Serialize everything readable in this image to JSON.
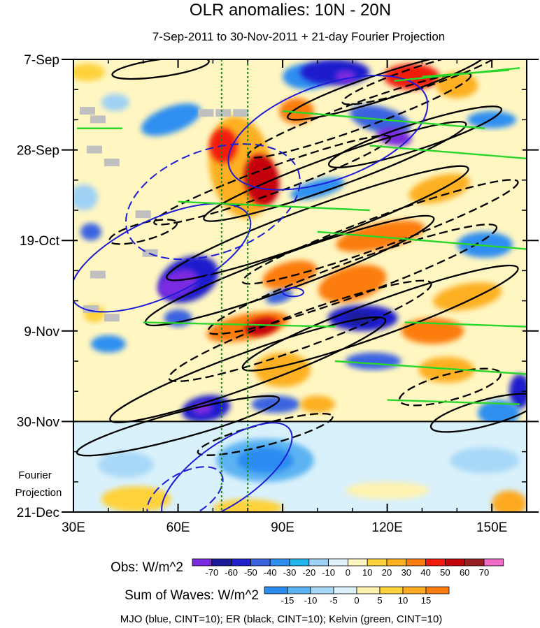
{
  "chart_data": {
    "type": "heatmap",
    "title": "OLR anomalies: 10N - 20N",
    "subtitle": "7-Sep-2011 to 30-Nov-2011 + 21-day Fourier Projection",
    "x_axis": {
      "range": [
        30,
        160
      ],
      "tick_values": [
        30,
        60,
        90,
        120,
        150
      ],
      "tick_labels": [
        "30E",
        "60E",
        "90E",
        "120E",
        "150E"
      ]
    },
    "y_axis": {
      "range_days": [
        0,
        105
      ],
      "tick_values": [
        0,
        21,
        42,
        63,
        84,
        105
      ],
      "tick_labels": [
        "7-Sep",
        "28-Sep",
        "19-Oct",
        "9-Nov",
        "30-Nov",
        "21-Dec"
      ]
    },
    "projection_label_line1": "Fourier",
    "projection_label_line2": "Projection",
    "projection_start_day": 84,
    "reference_lon_lines": [
      72.5,
      80
    ],
    "obs_colorbar": {
      "label": "Obs: W/m^2",
      "levels": [
        "-70",
        "-60",
        "-50",
        "-40",
        "-30",
        "-20",
        "-10",
        "0",
        "10",
        "20",
        "30",
        "40",
        "50",
        "60",
        "70"
      ],
      "colors": [
        "#7a2be0",
        "#1a1a99",
        "#1f1fcc",
        "#3b63e0",
        "#2f8ff0",
        "#23b6ee",
        "#9fd1f5",
        "#dff2fb",
        "#fff6c2",
        "#fed23a",
        "#fdb021",
        "#fc7d10",
        "#f21a0d",
        "#c4040b",
        "#992020",
        "#f06ac8"
      ]
    },
    "waves_colorbar": {
      "label": "Sum of Waves: W/m^2",
      "levels": [
        "-15",
        "-10",
        "-5",
        "0",
        "5",
        "10",
        "15"
      ],
      "colors": [
        "#2b8cf0",
        "#5cb3f3",
        "#a8d8f7",
        "#d9f1fb",
        "#fff2b0",
        "#fed23a",
        "#fdaa21",
        "#fc7d10"
      ]
    },
    "footnote": "MJO (blue, CINT=10); ER (black, CINT=10); Kelvin (green, CINT=10)",
    "contour_colors": {
      "mjo": "#1c1cd6",
      "er": "#000000",
      "kelvin": "#2bd62b",
      "ref_line": "#1a8a1a"
    },
    "blobs": [
      {
        "lon": 34,
        "day": 3,
        "rlon": 5,
        "rday": 2,
        "level": 9,
        "tilt": 0
      },
      {
        "lon": 42,
        "day": 10,
        "rlon": 4,
        "rday": 2,
        "level": 6,
        "tilt": 0
      },
      {
        "lon": 33,
        "day": 32,
        "rlon": 4,
        "rday": 3,
        "level": 6,
        "tilt": 0
      },
      {
        "lon": 35,
        "day": 40,
        "rlon": 3,
        "rday": 2,
        "level": 3,
        "tilt": 0
      },
      {
        "lon": 58,
        "day": 14,
        "rlon": 9,
        "rday": 3,
        "level": 4,
        "tilt": 20
      },
      {
        "lon": 78,
        "day": 25,
        "rlon": 9,
        "rday": 12,
        "level": 10,
        "tilt": 10
      },
      {
        "lon": 84,
        "day": 28,
        "rlon": 5,
        "rday": 6,
        "level": 13,
        "tilt": 10
      },
      {
        "lon": 73,
        "day": 20,
        "rlon": 4,
        "rday": 4,
        "level": 12,
        "tilt": 0
      },
      {
        "lon": 97,
        "day": 4,
        "rlon": 7,
        "rday": 3,
        "level": 4,
        "tilt": 0
      },
      {
        "lon": 105,
        "day": 3,
        "rlon": 10,
        "rday": 3,
        "level": 2,
        "tilt": 0
      },
      {
        "lon": 108,
        "day": 4,
        "rlon": 3,
        "rday": 1.5,
        "level": 0,
        "tilt": 0
      },
      {
        "lon": 127,
        "day": 4,
        "rlon": 8,
        "rday": 3,
        "level": 12,
        "tilt": 0
      },
      {
        "lon": 140,
        "day": 6,
        "rlon": 6,
        "rday": 3,
        "level": 10,
        "tilt": 0
      },
      {
        "lon": 94,
        "day": 12,
        "rlon": 5,
        "rday": 3,
        "level": 11,
        "tilt": 0
      },
      {
        "lon": 118,
        "day": 14,
        "rlon": 9,
        "rday": 3,
        "level": 3,
        "tilt": -15
      },
      {
        "lon": 122,
        "day": 18,
        "rlon": 5,
        "rday": 2,
        "level": 0,
        "tilt": -10
      },
      {
        "lon": 150,
        "day": 14,
        "rlon": 7,
        "rday": 2,
        "level": 4,
        "tilt": 0
      },
      {
        "lon": 100,
        "day": 30,
        "rlon": 8,
        "rday": 2,
        "level": 4,
        "tilt": 15
      },
      {
        "lon": 135,
        "day": 30,
        "rlon": 9,
        "rday": 3,
        "level": 10,
        "tilt": 15
      },
      {
        "lon": 118,
        "day": 41,
        "rlon": 13,
        "rday": 3,
        "level": 11,
        "tilt": 12
      },
      {
        "lon": 148,
        "day": 43,
        "rlon": 8,
        "rday": 3,
        "level": 4,
        "tilt": 0
      },
      {
        "lon": 63,
        "day": 51,
        "rlon": 9,
        "rday": 5,
        "level": 2,
        "tilt": 25
      },
      {
        "lon": 60,
        "day": 52,
        "rlon": 6,
        "rday": 3,
        "level": 0,
        "tilt": 25
      },
      {
        "lon": 92,
        "day": 50,
        "rlon": 8,
        "rday": 3,
        "level": 11,
        "tilt": 15
      },
      {
        "lon": 110,
        "day": 52,
        "rlon": 10,
        "rday": 4,
        "level": 11,
        "tilt": 15
      },
      {
        "lon": 89,
        "day": 55,
        "rlon": 4,
        "rday": 1.5,
        "level": 3,
        "tilt": 15
      },
      {
        "lon": 143,
        "day": 55,
        "rlon": 10,
        "rday": 3,
        "level": 10,
        "tilt": 10
      },
      {
        "lon": 60,
        "day": 60,
        "rlon": 4,
        "rday": 2,
        "level": 3,
        "tilt": 0
      },
      {
        "lon": 80,
        "day": 62,
        "rlon": 12,
        "rday": 3,
        "level": 11,
        "tilt": 12
      },
      {
        "lon": 84,
        "day": 62,
        "rlon": 5,
        "rday": 2,
        "level": 13,
        "tilt": 12
      },
      {
        "lon": 113,
        "day": 60,
        "rlon": 10,
        "rday": 3,
        "level": 2,
        "tilt": 0
      },
      {
        "lon": 112,
        "day": 60,
        "rlon": 4,
        "rday": 1.5,
        "level": 1,
        "tilt": 0
      },
      {
        "lon": 133,
        "day": 63,
        "rlon": 9,
        "rday": 3,
        "level": 11,
        "tilt": 0
      },
      {
        "lon": 116,
        "day": 70,
        "rlon": 8,
        "rday": 2,
        "level": 3,
        "tilt": 0
      },
      {
        "lon": 137,
        "day": 72,
        "rlon": 8,
        "rday": 3,
        "level": 10,
        "tilt": 0
      },
      {
        "lon": 90,
        "day": 72,
        "rlon": 8,
        "rday": 4,
        "level": 10,
        "tilt": 0
      },
      {
        "lon": 158,
        "day": 77,
        "rlon": 3,
        "rday": 4,
        "level": 2,
        "tilt": 0
      },
      {
        "lon": 68,
        "day": 81,
        "rlon": 7,
        "rday": 3,
        "level": 2,
        "tilt": 10
      },
      {
        "lon": 67,
        "day": 81,
        "rlon": 3,
        "rday": 1.5,
        "level": 0,
        "tilt": 10
      },
      {
        "lon": 88,
        "day": 80,
        "rlon": 7,
        "rday": 2,
        "level": 3,
        "tilt": 0
      },
      {
        "lon": 100,
        "day": 80,
        "rlon": 5,
        "rday": 2,
        "level": 10,
        "tilt": 0
      },
      {
        "lon": 152,
        "day": 82,
        "rlon": 6,
        "rday": 3,
        "level": 4,
        "tilt": 0
      },
      {
        "lon": 36,
        "day": 59,
        "rlon": 3,
        "rday": 2,
        "level": 9,
        "tilt": 0
      },
      {
        "lon": 40,
        "day": 66,
        "rlon": 5,
        "rday": 2,
        "level": 4,
        "tilt": 0
      }
    ],
    "wave_blobs": [
      {
        "lon": 85,
        "day": 93,
        "rlon": 14,
        "rday": 5,
        "level": 1,
        "tilt": 0
      },
      {
        "lon": 85,
        "day": 93,
        "rlon": 8,
        "rday": 3,
        "level": 0,
        "tilt": 0
      },
      {
        "lon": 45,
        "day": 94,
        "rlon": 8,
        "rday": 3,
        "level": 2,
        "tilt": 0
      },
      {
        "lon": 148,
        "day": 93,
        "rlon": 10,
        "rday": 3,
        "level": 2,
        "tilt": 0
      },
      {
        "lon": 48,
        "day": 102,
        "rlon": 10,
        "rday": 3,
        "level": 5,
        "tilt": 0
      },
      {
        "lon": 80,
        "day": 104,
        "rlon": 10,
        "rday": 2,
        "level": 5,
        "tilt": 0
      },
      {
        "lon": 155,
        "day": 103,
        "rlon": 5,
        "rday": 3,
        "level": 6,
        "tilt": 0
      },
      {
        "lon": 120,
        "day": 100,
        "rlon": 12,
        "rday": 2,
        "level": 4,
        "tilt": 0
      }
    ],
    "er_contours": [
      {
        "lon": 55,
        "day": 2,
        "rlon": 14,
        "rday": 2,
        "tilt": 8,
        "dashed": false
      },
      {
        "lon": 120,
        "day": 6,
        "rlon": 30,
        "rday": 3,
        "tilt": 18,
        "dashed": false
      },
      {
        "lon": 130,
        "day": 4,
        "rlon": 24,
        "rday": 2.5,
        "tilt": 18,
        "dashed": true
      },
      {
        "lon": 112,
        "day": 13,
        "rlon": 34,
        "rday": 3,
        "tilt": 20,
        "dashed": true
      },
      {
        "lon": 128,
        "day": 18,
        "rlon": 26,
        "rday": 3,
        "tilt": 18,
        "dashed": false
      },
      {
        "lon": 105,
        "day": 26,
        "rlon": 40,
        "rday": 3.5,
        "tilt": 20,
        "dashed": false
      },
      {
        "lon": 87,
        "day": 28,
        "rlon": 36,
        "rday": 3,
        "tilt": 20,
        "dashed": true
      },
      {
        "lon": 100,
        "day": 38,
        "rlon": 46,
        "rday": 4,
        "tilt": 20,
        "dashed": false
      },
      {
        "lon": 118,
        "day": 40,
        "rlon": 42,
        "rday": 3.5,
        "tilt": 20,
        "dashed": true
      },
      {
        "lon": 92,
        "day": 49,
        "rlon": 44,
        "rday": 4,
        "tilt": 20,
        "dashed": false
      },
      {
        "lon": 110,
        "day": 51,
        "rlon": 44,
        "rday": 4,
        "tilt": 20,
        "dashed": true
      },
      {
        "lon": 118,
        "day": 60,
        "rlon": 42,
        "rday": 4,
        "tilt": 20,
        "dashed": false
      },
      {
        "lon": 95,
        "day": 63,
        "rlon": 40,
        "rday": 4,
        "tilt": 20,
        "dashed": true
      },
      {
        "lon": 80,
        "day": 72,
        "rlon": 42,
        "rday": 4,
        "tilt": 20,
        "dashed": false
      },
      {
        "lon": 138,
        "day": 76,
        "rlon": 15,
        "rday": 3,
        "tilt": 15,
        "dashed": true
      },
      {
        "lon": 60,
        "day": 85,
        "rlon": 30,
        "rday": 3,
        "tilt": 15,
        "dashed": false
      },
      {
        "lon": 85,
        "day": 87,
        "rlon": 20,
        "rday": 2.5,
        "tilt": 15,
        "dashed": true
      },
      {
        "lon": 148,
        "day": 82,
        "rlon": 16,
        "rday": 3,
        "tilt": 15,
        "dashed": false
      },
      {
        "lon": 50,
        "day": 40,
        "rlon": 10,
        "rday": 2,
        "tilt": 15,
        "dashed": true
      }
    ],
    "mjo_contours": [
      {
        "lon": 55,
        "day": 46,
        "rlon": 28,
        "rday": 9,
        "tilt": 25,
        "dashed": false
      },
      {
        "lon": 103,
        "day": 17,
        "rlon": 30,
        "rday": 11,
        "tilt": 20,
        "dashed": false
      },
      {
        "lon": 70,
        "day": 33,
        "rlon": 26,
        "rday": 12,
        "tilt": 20,
        "dashed": true
      },
      {
        "lon": 93,
        "day": 54,
        "rlon": 3,
        "rday": 1,
        "tilt": 0,
        "dashed": false
      },
      {
        "lon": 74,
        "day": 96,
        "rlon": 22,
        "rday": 7,
        "tilt": 35,
        "dashed": false
      },
      {
        "lon": 62,
        "day": 101,
        "rlon": 12,
        "rday": 5,
        "tilt": 30,
        "dashed": true
      }
    ],
    "kelvin_segments": [
      {
        "lon1": 122,
        "day1": 5,
        "lon2": 158,
        "day2": 2
      },
      {
        "lon1": 130,
        "day1": 4,
        "lon2": 155,
        "day2": 2.5
      },
      {
        "lon1": 31,
        "day1": 16,
        "lon2": 44,
        "day2": 16
      },
      {
        "lon1": 90,
        "day1": 12,
        "lon2": 148,
        "day2": 16
      },
      {
        "lon1": 115,
        "day1": 20,
        "lon2": 160,
        "day2": 23
      },
      {
        "lon1": 60,
        "day1": 33,
        "lon2": 115,
        "day2": 35
      },
      {
        "lon1": 100,
        "day1": 40,
        "lon2": 160,
        "day2": 44
      },
      {
        "lon1": 50,
        "day1": 61,
        "lon2": 105,
        "day2": 62
      },
      {
        "lon1": 125,
        "day1": 61,
        "lon2": 160,
        "day2": 62
      },
      {
        "lon1": 105,
        "day1": 70,
        "lon2": 160,
        "day2": 73
      },
      {
        "lon1": 120,
        "day1": 79,
        "lon2": 158,
        "day2": 80
      }
    ],
    "missing_patches": [
      {
        "lon": 34,
        "day": 12
      },
      {
        "lon": 37,
        "day": 14
      },
      {
        "lon": 36,
        "day": 21
      },
      {
        "lon": 41,
        "day": 24
      },
      {
        "lon": 50,
        "day": 36
      },
      {
        "lon": 73,
        "day": 12.5
      },
      {
        "lon": 68,
        "day": 12.5
      },
      {
        "lon": 78,
        "day": 12.5
      },
      {
        "lon": 52,
        "day": 45
      },
      {
        "lon": 37,
        "day": 50
      },
      {
        "lon": 35,
        "day": 58
      },
      {
        "lon": 41,
        "day": 60
      }
    ]
  }
}
